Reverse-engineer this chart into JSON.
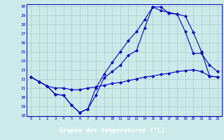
{
  "xlabel": "Graphe des températures (°C)",
  "background_color": "#cceaea",
  "line_color": "#0000bb",
  "grid_color": "#aacccc",
  "ylim": [
    18,
    30
  ],
  "xlim": [
    -0.5,
    23.5
  ],
  "yticks": [
    18,
    19,
    20,
    21,
    22,
    23,
    24,
    25,
    26,
    27,
    28,
    29,
    30
  ],
  "xticks": [
    0,
    1,
    2,
    3,
    4,
    5,
    6,
    7,
    8,
    9,
    10,
    11,
    12,
    13,
    14,
    15,
    16,
    17,
    18,
    19,
    20,
    21,
    22,
    23
  ],
  "line1_x": [
    0,
    1,
    2,
    3,
    4,
    5,
    6,
    7,
    8,
    9,
    10,
    11,
    12,
    13,
    14,
    15,
    16,
    17,
    18,
    19,
    20,
    21,
    22,
    23
  ],
  "line1_y": [
    22.2,
    21.7,
    21.2,
    20.3,
    20.2,
    19.1,
    18.3,
    18.7,
    20.2,
    22.1,
    22.8,
    23.5,
    24.6,
    25.1,
    27.6,
    29.9,
    29.9,
    29.2,
    29.1,
    28.9,
    27.1,
    25.0,
    22.3,
    22.2
  ],
  "line2_x": [
    0,
    1,
    2,
    3,
    4,
    5,
    6,
    7,
    8,
    9,
    10,
    11,
    12,
    13,
    14,
    15,
    16,
    17,
    18,
    19,
    20,
    21,
    22,
    23
  ],
  "line2_y": [
    22.2,
    21.7,
    21.2,
    20.3,
    20.2,
    19.1,
    18.3,
    18.7,
    21.0,
    22.5,
    23.8,
    25.0,
    26.2,
    27.2,
    28.5,
    29.9,
    29.5,
    29.3,
    29.1,
    27.2,
    24.8,
    24.8,
    23.5,
    22.8
  ],
  "line3_x": [
    0,
    1,
    2,
    3,
    4,
    5,
    6,
    7,
    8,
    9,
    10,
    11,
    12,
    13,
    14,
    15,
    16,
    17,
    18,
    19,
    20,
    21,
    22,
    23
  ],
  "line3_y": [
    22.2,
    21.7,
    21.2,
    21.0,
    21.0,
    20.8,
    20.8,
    21.0,
    21.1,
    21.3,
    21.5,
    21.6,
    21.8,
    22.0,
    22.2,
    22.3,
    22.5,
    22.6,
    22.8,
    22.9,
    23.0,
    22.8,
    22.3,
    22.2
  ]
}
